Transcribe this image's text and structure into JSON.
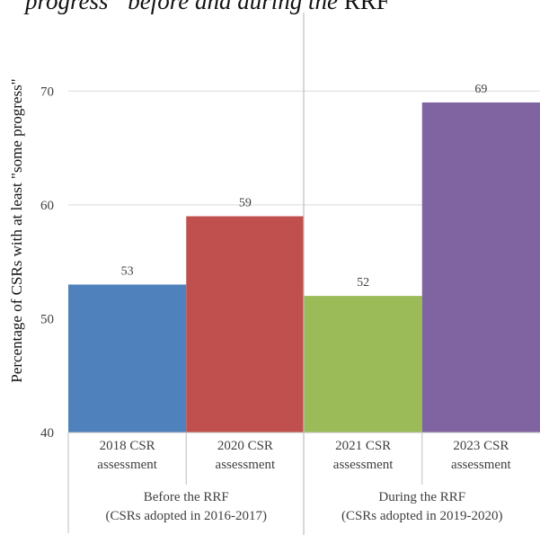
{
  "title_fragment": {
    "italic": "progress” before and during the",
    "upright": "RRF"
  },
  "chart_data": {
    "type": "bar",
    "ylabel": "Percentage of CSRs with at least \"some progress\"",
    "ylim": [
      40,
      75
    ],
    "yticks": [
      40,
      50,
      60,
      70
    ],
    "grid": true,
    "categories": [
      [
        "2018 CSR",
        "assessment"
      ],
      [
        "2020 CSR",
        "assessment"
      ],
      [
        "2021 CSR",
        "assessment"
      ],
      [
        "2023 CSR",
        "assessment"
      ]
    ],
    "values": [
      53,
      59,
      52,
      69
    ],
    "data_labels": [
      "53",
      "59",
      "52",
      "69"
    ],
    "colors": [
      "#4f81bd",
      "#c0504d",
      "#9bbb59",
      "#8064a2"
    ],
    "groups": [
      {
        "lines": [
          "Before the RRF",
          "(CSRs adopted in 2016-2017)"
        ],
        "members": [
          0,
          1
        ]
      },
      {
        "lines": [
          "During the RRF",
          "(CSRs adopted in 2019-2020)"
        ],
        "members": [
          2,
          3
        ]
      }
    ]
  }
}
